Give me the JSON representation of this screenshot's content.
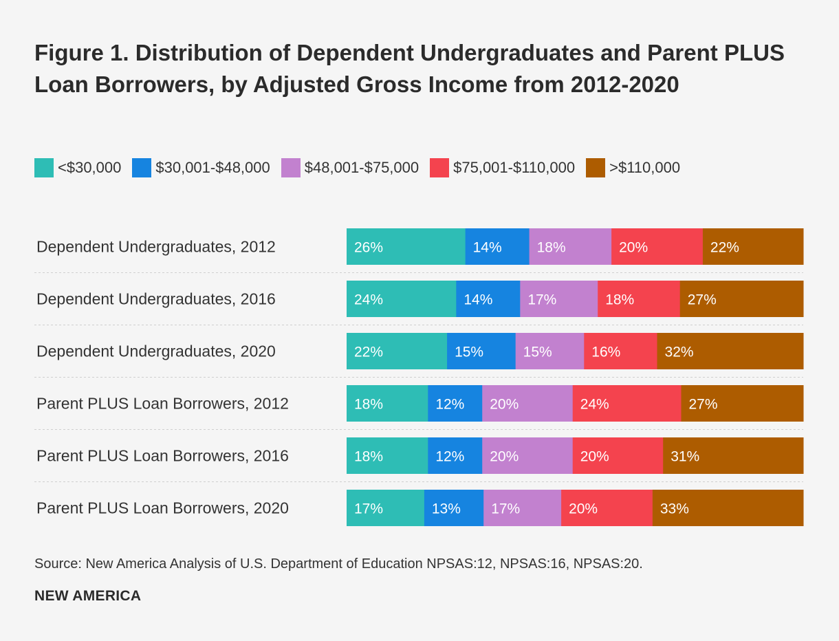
{
  "chart_data": {
    "type": "bar",
    "orientation": "horizontal",
    "stacked": true,
    "percent": true,
    "title": "Figure 1. Distribution of Dependent Undergraduates and Parent PLUS Loan Borrowers, by Adjusted Gross Income from 2012-2020",
    "categories": [
      "Dependent Undergraduates, 2012",
      "Dependent Undergraduates, 2016",
      "Dependent Undergraduates, 2020",
      "Parent PLUS Loan Borrowers, 2012",
      "Parent PLUS Loan Borrowers, 2016",
      "Parent PLUS Loan Borrowers, 2020"
    ],
    "series": [
      {
        "name": "<$30,000",
        "color": "#2ebdb5",
        "values": [
          26,
          24,
          22,
          18,
          18,
          17
        ]
      },
      {
        "name": "$30,001-$48,000",
        "color": "#1684e0",
        "values": [
          14,
          14,
          15,
          12,
          12,
          13
        ]
      },
      {
        "name": "$48,001-$75,000",
        "color": "#c281cf",
        "values": [
          18,
          17,
          15,
          20,
          20,
          17
        ]
      },
      {
        "name": "$75,001-$110,000",
        "color": "#f4434e",
        "values": [
          20,
          18,
          16,
          24,
          20,
          20
        ]
      },
      {
        "name": ">$110,000",
        "color": "#ad5c00",
        "values": [
          22,
          27,
          32,
          27,
          31,
          33
        ]
      }
    ],
    "xlabel": "",
    "ylabel": "",
    "legend": "top"
  },
  "source": "Source: New America Analysis of U.S. Department of Education NPSAS:12, NPSAS:16, NPSAS:20.",
  "brand": "NEW AMERICA"
}
